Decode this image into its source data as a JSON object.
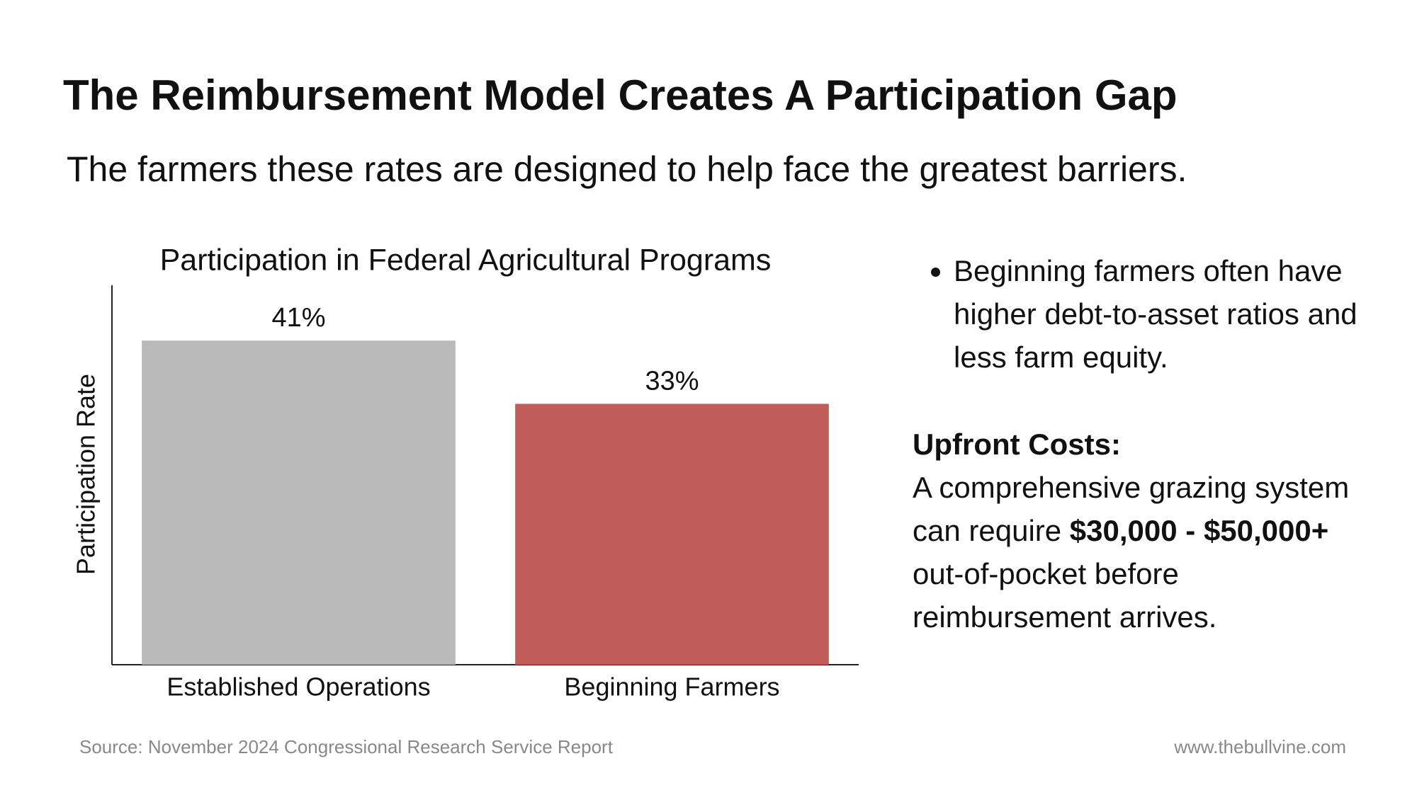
{
  "header": {
    "title": "The Reimbursement Model Creates A Participation Gap",
    "subtitle": "The farmers these rates are designed to help face the greatest barriers."
  },
  "chart_data": {
    "type": "bar",
    "title": "Participation in Federal Agricultural Programs",
    "y_label": "Participation Rate",
    "categories": [
      "Established Operations",
      "Beginning Farmers"
    ],
    "values": [
      41,
      33
    ],
    "value_labels": [
      "41%",
      "33%"
    ],
    "colors": [
      "#b9b9b9",
      "#c05c5a"
    ],
    "ylim": [
      0,
      48
    ]
  },
  "sidebar": {
    "bullet": "Beginning farmers often have higher debt-to-asset ratios and less farm equity.",
    "heading": "Upfront Costs:",
    "body": [
      {
        "text": "A comprehensive grazing system can require "
      },
      {
        "text": "$30,000 - $50,000+",
        "bold": true
      },
      {
        "text": " out-of-pocket before reimbursement arrives."
      }
    ]
  },
  "footer": {
    "source": "Source: November 2024 Congressional Research Service Report",
    "site": "www.thebullvine.com"
  }
}
